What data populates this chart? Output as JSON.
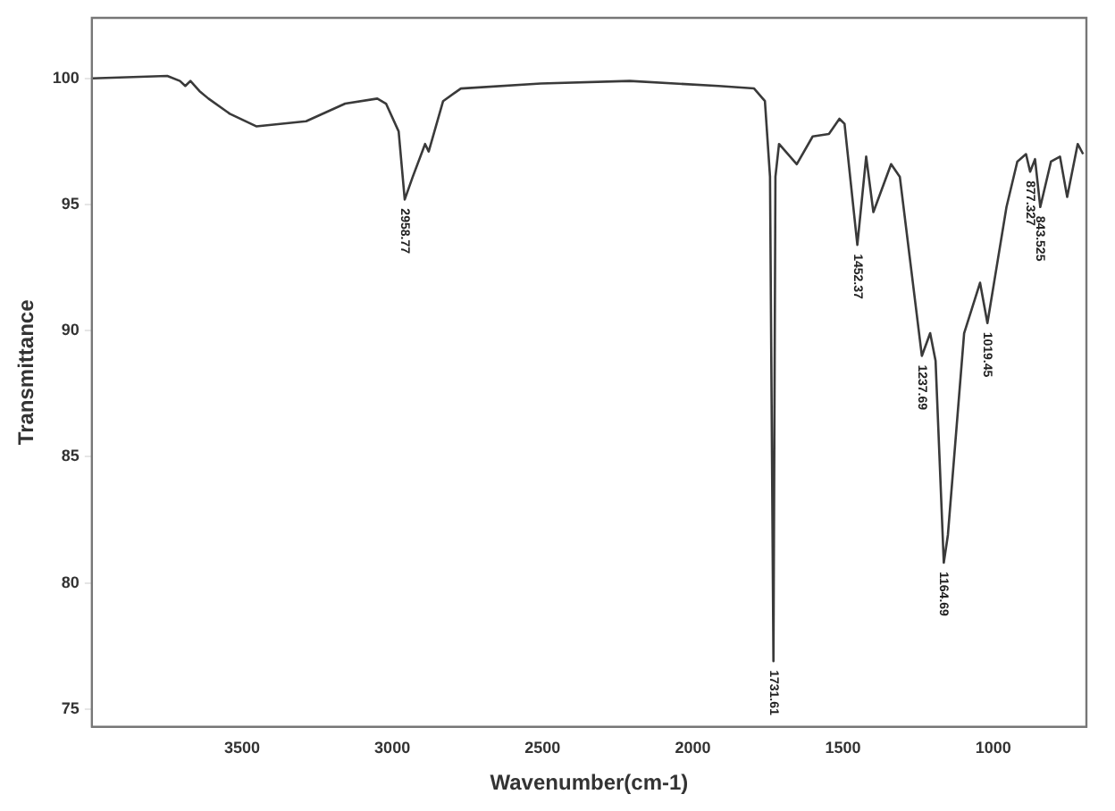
{
  "chart_data": {
    "type": "line",
    "xlabel": "Wavenumber(cm-1)",
    "ylabel": "Transmittance",
    "xlim": [
      4000,
      690
    ],
    "ylim": [
      74.3,
      102.4
    ],
    "xticks": [
      3500,
      3000,
      2500,
      2000,
      1500,
      1000
    ],
    "yticks": [
      75,
      80,
      85,
      90,
      95,
      100
    ],
    "grid": false,
    "legend": false,
    "marker": "none",
    "line_style": "solid",
    "series": [
      {
        "color": "#3a3a3a",
        "x": [
          4000,
          3749,
          3707,
          3689,
          3672,
          3642,
          3612,
          3541,
          3453,
          3287,
          3157,
          3050,
          3021,
          2979,
          2958.77,
          2932,
          2891,
          2879,
          2831,
          2772,
          2506,
          2210,
          1914,
          1796,
          1760,
          1743,
          1731.61,
          1725,
          1713,
          1654,
          1601,
          1547,
          1512,
          1495,
          1452.37,
          1423,
          1399,
          1340,
          1311,
          1237.69,
          1210,
          1192,
          1164.69,
          1151,
          1097,
          1044,
          1019.45,
          985,
          956,
          920,
          891,
          877.327,
          861,
          843.525,
          808,
          778,
          754,
          719,
          701
        ],
        "values": [
          100,
          100.1,
          99.9,
          99.7,
          99.9,
          99.5,
          99.2,
          98.6,
          98.1,
          98.3,
          99,
          99.2,
          99,
          97.9,
          95.2,
          96.1,
          97.4,
          97.1,
          99.1,
          99.6,
          99.8,
          99.9,
          99.7,
          99.6,
          99.1,
          96.1,
          76.9,
          96.1,
          97.4,
          96.6,
          97.7,
          97.8,
          98.4,
          98.2,
          93.4,
          96.9,
          94.7,
          96.6,
          96.1,
          89,
          89.9,
          88.8,
          80.8,
          81.9,
          89.9,
          91.9,
          90.3,
          92.8,
          94.9,
          96.7,
          97,
          96.3,
          96.8,
          94.9,
          96.7,
          96.9,
          95.3,
          97.4,
          97
        ]
      }
    ],
    "annotations": [
      {
        "text": "2958.77",
        "x": 2958.77,
        "y": 95.2
      },
      {
        "text": "1731.61",
        "x": 1731.61,
        "y": 76.9
      },
      {
        "text": "1452.37",
        "x": 1452.37,
        "y": 93.4
      },
      {
        "text": "1237.69",
        "x": 1237.69,
        "y": 89
      },
      {
        "text": "1164.69",
        "x": 1164.69,
        "y": 80.8
      },
      {
        "text": "1019.45",
        "x": 1019.45,
        "y": 90.3
      },
      {
        "text": "877.327",
        "x": 877.327,
        "y": 96.3
      },
      {
        "text": "843.525",
        "x": 843.525,
        "y": 94.9
      }
    ]
  }
}
